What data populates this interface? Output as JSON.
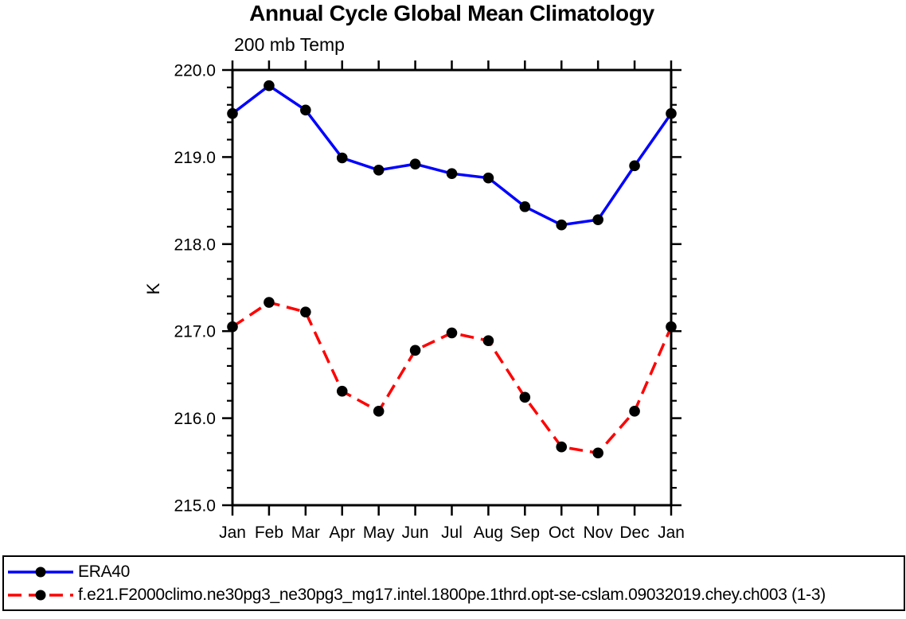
{
  "chart_data": {
    "type": "line",
    "title": "Annual Cycle Global Mean Climatology",
    "subtitle": "200 mb Temp",
    "ylabel": "K",
    "categories": [
      "Jan",
      "Feb",
      "Mar",
      "Apr",
      "May",
      "Jun",
      "Jul",
      "Aug",
      "Sep",
      "Oct",
      "Nov",
      "Dec",
      "Jan"
    ],
    "ylim": [
      215.0,
      220.0
    ],
    "ytick_step": 1.0,
    "yminor_step": 0.2,
    "ytick_decimals": 1,
    "grid": false,
    "legend_position": "bottom-box",
    "axis_color": "#000000",
    "marker_color": "#000000",
    "series": [
      {
        "name": "ERA40",
        "color": "#0000FF",
        "line_style": "solid",
        "marker": "filled-circle",
        "values": [
          219.5,
          219.82,
          219.54,
          218.99,
          218.85,
          218.92,
          218.81,
          218.76,
          218.43,
          218.22,
          218.28,
          218.9,
          219.5
        ]
      },
      {
        "name": "f.e21.F2000climo.ne30pg3_ne30pg3_mg17.intel.1800pe.1thrd.opt-se-cslam.09032019.chey.ch003 (1-3)",
        "color": "#FF0000",
        "line_style": "dashed",
        "marker": "filled-circle",
        "values": [
          217.05,
          217.33,
          217.22,
          216.31,
          216.08,
          216.78,
          216.98,
          216.89,
          216.24,
          215.67,
          215.6,
          216.08,
          217.05
        ]
      }
    ]
  }
}
